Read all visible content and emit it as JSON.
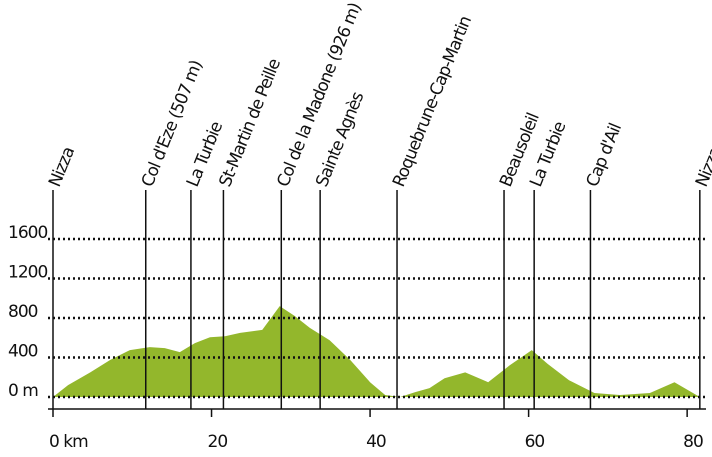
{
  "chart_data": {
    "type": "area",
    "color": "#93b72c",
    "grid": true,
    "xlim": [
      0,
      82
    ],
    "ylim": [
      0,
      1600
    ],
    "xticks": [
      {
        "value": 0,
        "label": "0 km"
      },
      20,
      40,
      60,
      80
    ],
    "yticks": [
      {
        "value": 0,
        "label": "0 m"
      },
      400,
      800,
      1200,
      1600
    ],
    "x": [
      0,
      1.9,
      4.7,
      7.2,
      9.7,
      12.2,
      14.1,
      16.0,
      17.9,
      19.8,
      21.7,
      23.6,
      26.4,
      28.6,
      30.5,
      32.4,
      34.9,
      37.5,
      40.0,
      41.9,
      43.8,
      45.7,
      47.5,
      49.4,
      52.0,
      54.9,
      57.6,
      60.4,
      62.4,
      65.1,
      68.3,
      71.5,
      75.3,
      78.4,
      81.6
    ],
    "values": [
      0,
      120,
      250,
      375,
      475,
      505,
      495,
      455,
      545,
      605,
      615,
      650,
      680,
      920,
      820,
      700,
      575,
      375,
      150,
      20,
      0,
      50,
      90,
      190,
      250,
      150,
      320,
      475,
      335,
      170,
      40,
      20,
      40,
      150,
      0
    ],
    "waypoints": [
      {
        "label": "Nizza",
        "km": 0
      },
      {
        "label": "Col d'Eze (507 m)",
        "km": 11.7
      },
      {
        "label": "La Turbie",
        "km": 17.4
      },
      {
        "label": "St-Martin de Peille",
        "km": 21.5
      },
      {
        "label": "Col de la Madone (926 m)",
        "km": 28.8
      },
      {
        "label": "Sainte Agnès",
        "km": 33.7
      },
      {
        "label": "Roquebrune-Cap-Martin",
        "km": 43.4
      },
      {
        "label": "Beausoleil",
        "km": 56.9
      },
      {
        "label": "La Turbie",
        "km": 60.7
      },
      {
        "label": "Cap d'Ail",
        "km": 67.8
      },
      {
        "label": "Nizza",
        "km": 81.6
      }
    ]
  }
}
